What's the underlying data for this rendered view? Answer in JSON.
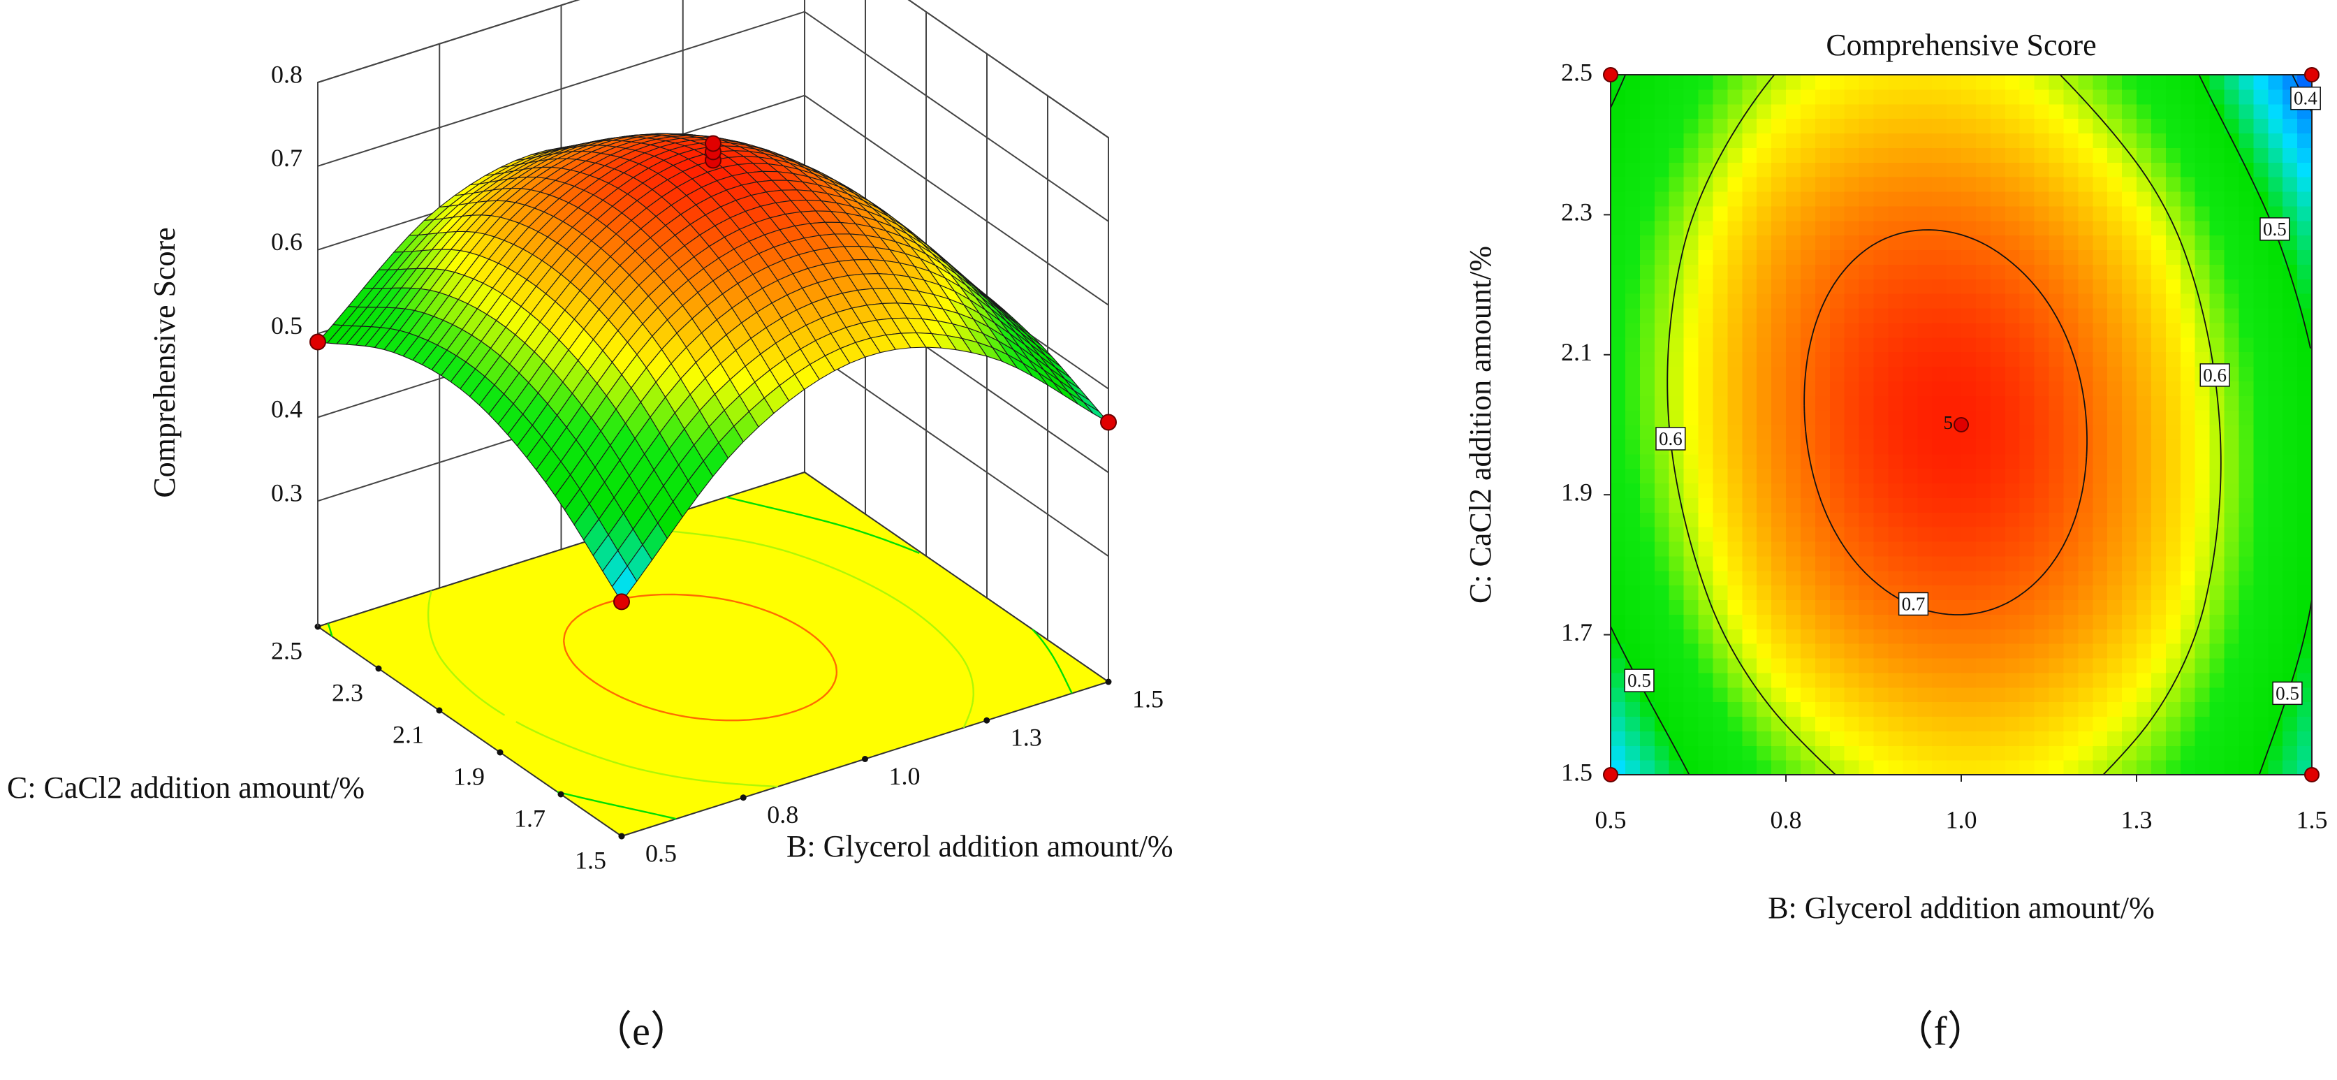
{
  "chart_data": [
    {
      "type": "surface",
      "zlabel": "Comprehensive Score",
      "xlabel": "B: Glycerol addition amount/%",
      "ylabel": "C: CaCl2 addition amount/%",
      "panel_label": "（e）",
      "x": [
        0.5,
        0.75,
        1,
        1.25,
        1.5
      ],
      "y": [
        1.5,
        1.75,
        2,
        2.25,
        2.5
      ],
      "z": [
        [
          0.43,
          0.575,
          0.63,
          0.585,
          0.46
        ],
        [
          0.51,
          0.658,
          0.705,
          0.653,
          0.5
        ],
        [
          0.55,
          0.69,
          0.74,
          0.67,
          0.51
        ],
        [
          0.54,
          0.673,
          0.705,
          0.638,
          0.47
        ],
        [
          0.49,
          0.605,
          0.63,
          0.555,
          0.38
        ]
      ],
      "xlim": [
        0.5,
        1.5
      ],
      "ylim": [
        1.5,
        2.5
      ],
      "zlim": [
        0.15,
        0.8
      ],
      "xticks": [
        0.5,
        {
          "value": 0.75,
          "label": "0.8"
        },
        {
          "value": 1,
          "label": "1.0"
        },
        {
          "value": 1.25,
          "label": "1.3"
        },
        1.5
      ],
      "yticks": [
        1.5,
        1.7,
        1.9,
        2.1,
        2.3,
        2.5
      ],
      "zticks": [
        0.3,
        0.4,
        0.5,
        0.6,
        0.7,
        0.8
      ],
      "points": {
        "x": [
          0.5,
          1.5,
          0.5,
          1,
          1,
          1
        ],
        "y": [
          2.5,
          1.5,
          1.5,
          2,
          2,
          2
        ],
        "z": [
          0.49,
          0.46,
          0.43,
          0.74,
          0.75,
          0.76
        ]
      },
      "point_color": "#e00000",
      "floor_color": "#ffff00",
      "floor_levels": [
        0.5,
        0.6,
        0.7
      ],
      "colormap": [
        "#0050ff",
        "#00e0ff",
        "#00e000",
        "#10e810",
        "#ffff00",
        "#ff9000",
        "#ff2000"
      ]
    },
    {
      "type": "contour",
      "title": "Comprehensive Score",
      "xlabel": "B: Glycerol addition amount/%",
      "ylabel": "C: CaCl2 addition amount/%",
      "panel_label": "（f）",
      "x": [
        0.5,
        0.75,
        1,
        1.25,
        1.5
      ],
      "y": [
        1.5,
        1.75,
        2,
        2.25,
        2.5
      ],
      "z": [
        [
          0.43,
          0.575,
          0.63,
          0.585,
          0.46
        ],
        [
          0.51,
          0.658,
          0.705,
          0.653,
          0.5
        ],
        [
          0.55,
          0.69,
          0.74,
          0.67,
          0.51
        ],
        [
          0.54,
          0.673,
          0.705,
          0.638,
          0.47
        ],
        [
          0.49,
          0.605,
          0.63,
          0.555,
          0.38
        ]
      ],
      "xlim": [
        0.5,
        1.5
      ],
      "ylim": [
        1.5,
        2.5
      ],
      "xticks": [
        0.5,
        {
          "value": 0.75,
          "label": "0.8"
        },
        {
          "value": 1,
          "label": "1.0"
        },
        {
          "value": 1.25,
          "label": "1.3"
        },
        1.5
      ],
      "yticks": [
        1.5,
        1.7,
        1.9,
        2.1,
        2.3,
        2.5
      ],
      "levels": [
        0.4,
        0.5,
        0.6,
        0.7
      ],
      "points": {
        "x": [
          0.5,
          1.5,
          0.5,
          1.5,
          1
        ],
        "y": [
          2.5,
          2.5,
          1.5,
          1.5,
          2
        ]
      },
      "point_labels": [
        null,
        null,
        null,
        null,
        "5"
      ],
      "point_color": "#e00000",
      "colormap": [
        "#0050ff",
        "#00e0ff",
        "#00e000",
        "#10e810",
        "#ffff00",
        "#ff9000",
        "#ff2000"
      ]
    }
  ]
}
